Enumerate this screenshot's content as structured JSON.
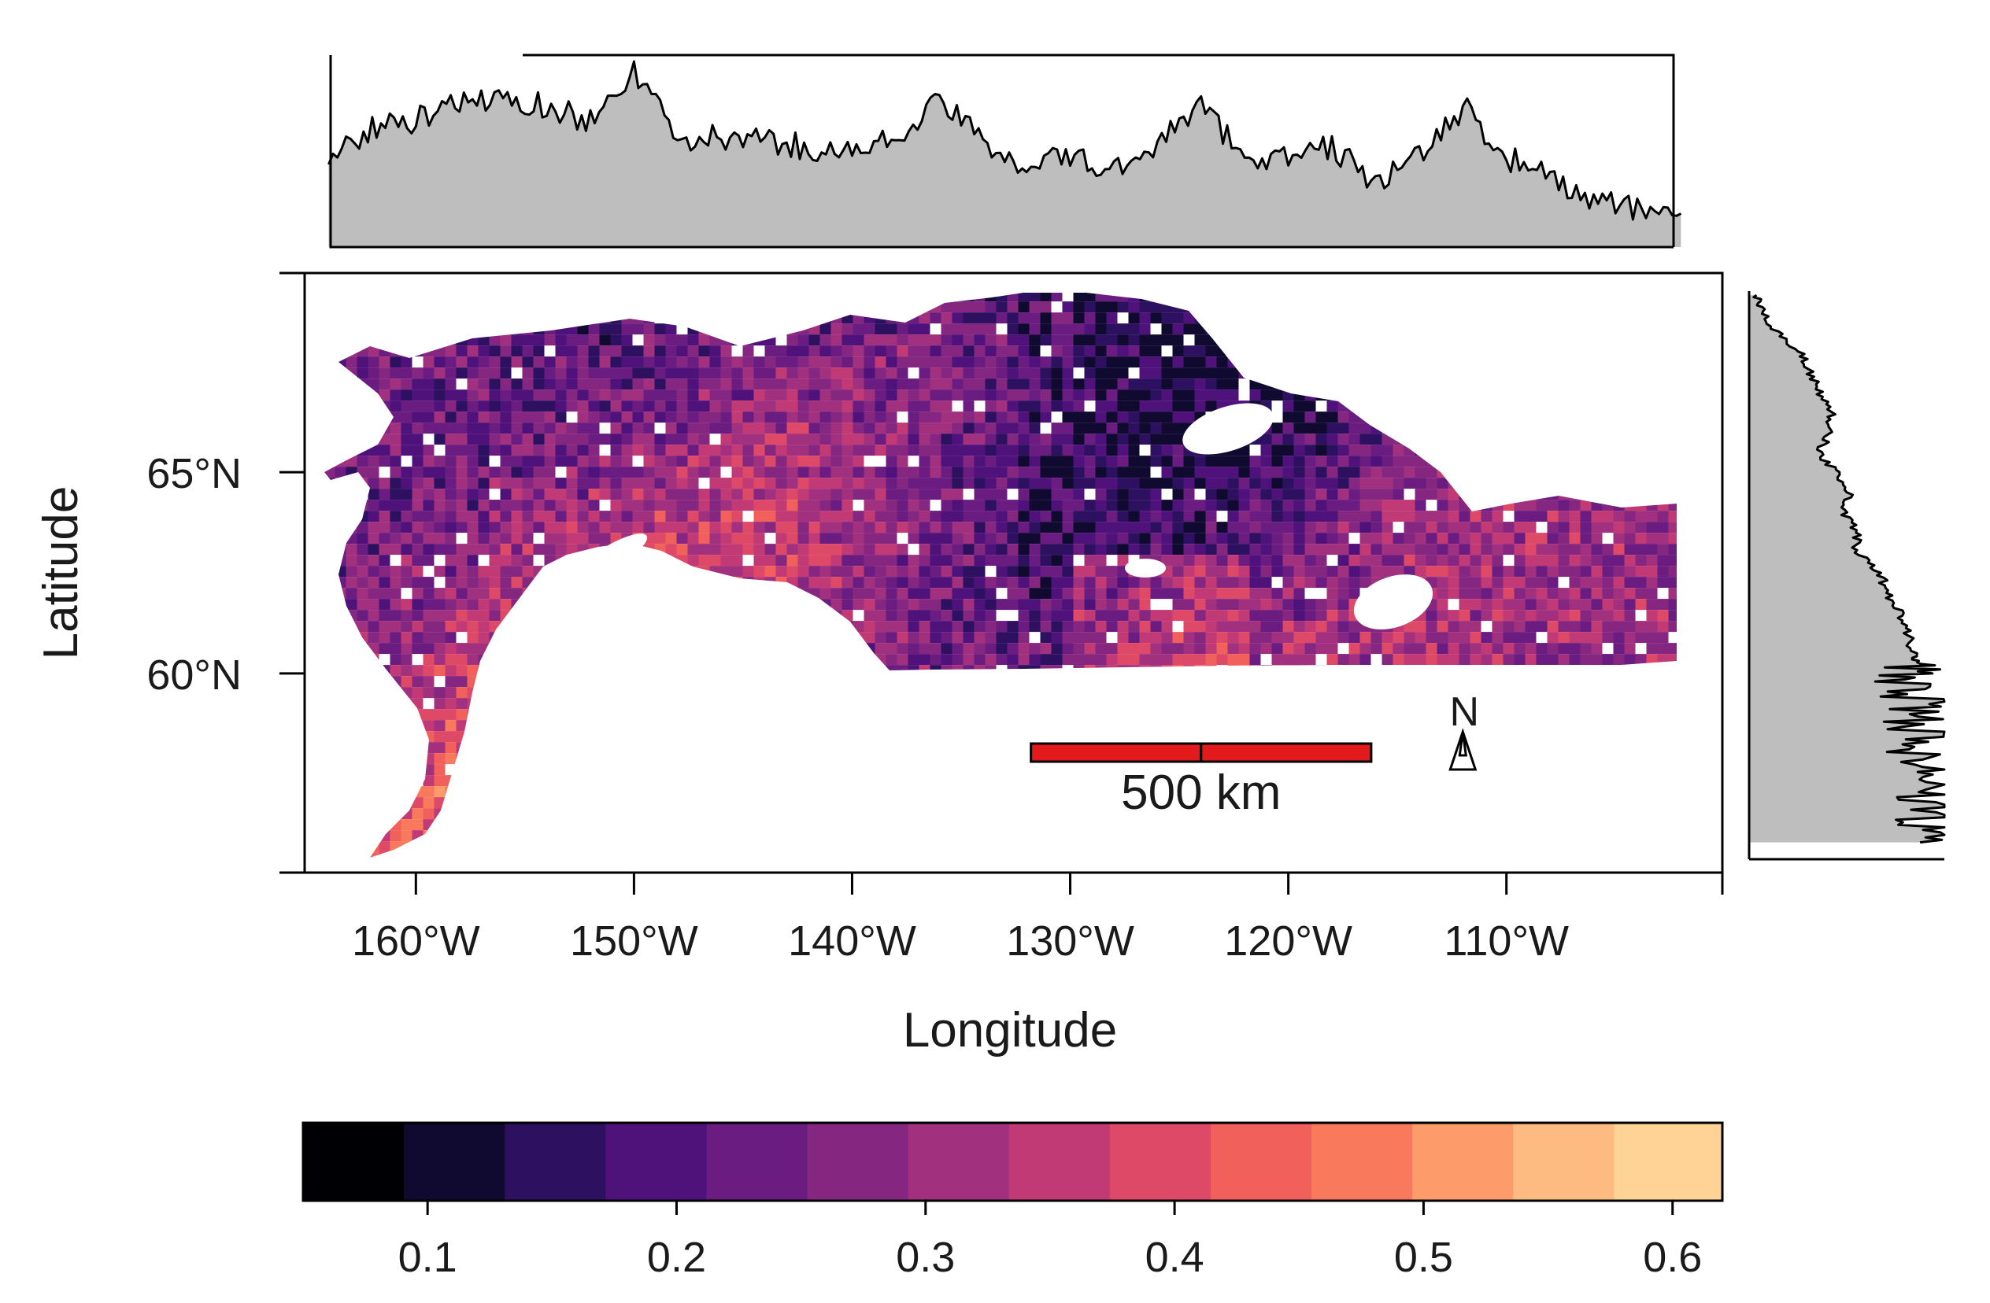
{
  "chart_data": {
    "type": "heatmap",
    "map_title": "",
    "xlabel": "Longitude",
    "ylabel": "Latitude",
    "x_ticks": [
      {
        "value": -160,
        "label": "160°W"
      },
      {
        "value": -150,
        "label": "150°W"
      },
      {
        "value": -140,
        "label": "140°W"
      },
      {
        "value": -130,
        "label": "130°W"
      },
      {
        "value": -120,
        "label": "120°W"
      },
      {
        "value": -110,
        "label": "110°W"
      }
    ],
    "y_ticks": [
      {
        "value": 65,
        "label": "65°N"
      },
      {
        "value": 60,
        "label": "60°N"
      }
    ],
    "xlim": [
      -165.1,
      -100.1
    ],
    "ylim": [
      55.05,
      69.95
    ],
    "data_extent": {
      "lon": [
        -164,
        -102
      ],
      "lat": [
        55.5,
        69.4
      ]
    },
    "scale_bar": {
      "label": "500 km",
      "lon_start": -131.8,
      "lon_end": -116.2,
      "lat": 58.2,
      "color": "#e31a1c"
    },
    "north_arrow": {
      "label": "N",
      "lon": -112,
      "lat": 58.3
    },
    "colorbar": {
      "range": [
        0.05,
        0.62
      ],
      "bins": [
        0.05,
        0.0905,
        0.131,
        0.1715,
        0.212,
        0.2525,
        0.293,
        0.3335,
        0.374,
        0.4145,
        0.455,
        0.4955,
        0.536,
        0.5765,
        0.62
      ],
      "colors": [
        "#000004",
        "#110a30",
        "#2d1160",
        "#4f127b",
        "#6a1c81",
        "#852781",
        "#a1307e",
        "#c13a75",
        "#de4968",
        "#f2605c",
        "#f9795c",
        "#fd9b6b",
        "#febb81",
        "#fed395",
        "#fcfdbf"
      ],
      "tick_values": [
        0.1,
        0.2,
        0.3,
        0.4,
        0.5,
        0.6
      ],
      "tick_labels": [
        "0.1",
        "0.2",
        "0.3",
        "0.4",
        "0.5",
        "0.6"
      ]
    },
    "top_marginal": {
      "description_axis": "longitude",
      "lon": [
        -164,
        -162,
        -160,
        -158,
        -156,
        -154,
        -152,
        -150,
        -148,
        -146,
        -144,
        -142,
        -140,
        -138,
        -136,
        -134,
        -132,
        -130,
        -128,
        -126,
        -124,
        -122,
        -120,
        -118,
        -116,
        -114,
        -112,
        -110,
        -108,
        -106,
        -104,
        -102
      ],
      "values": [
        0.45,
        0.62,
        0.66,
        0.74,
        0.78,
        0.73,
        0.66,
        0.92,
        0.55,
        0.57,
        0.55,
        0.52,
        0.49,
        0.57,
        0.76,
        0.55,
        0.43,
        0.47,
        0.39,
        0.55,
        0.73,
        0.48,
        0.46,
        0.52,
        0.34,
        0.46,
        0.73,
        0.47,
        0.36,
        0.24,
        0.19,
        0.21
      ],
      "ylim": [
        0,
        1
      ]
    },
    "right_marginal": {
      "description_axis": "latitude",
      "lat": [
        69.4,
        69.0,
        68.5,
        68.0,
        67.5,
        67.0,
        66.5,
        66.0,
        65.5,
        65.0,
        64.5,
        64.0,
        63.5,
        63.0,
        62.5,
        62.0,
        61.5,
        61.0,
        60.5,
        60.2,
        59.8,
        59.3,
        58.8,
        58.3,
        57.8,
        57.3,
        56.8,
        56.3,
        55.8
      ],
      "values": [
        0.03,
        0.06,
        0.14,
        0.26,
        0.31,
        0.36,
        0.42,
        0.42,
        0.36,
        0.44,
        0.52,
        0.48,
        0.56,
        0.55,
        0.67,
        0.71,
        0.77,
        0.81,
        0.84,
        0.86,
        0.78,
        0.87,
        0.85,
        0.91,
        0.82,
        0.95,
        0.87,
        0.92,
        0.83
      ],
      "xlim": [
        0,
        1
      ]
    }
  }
}
